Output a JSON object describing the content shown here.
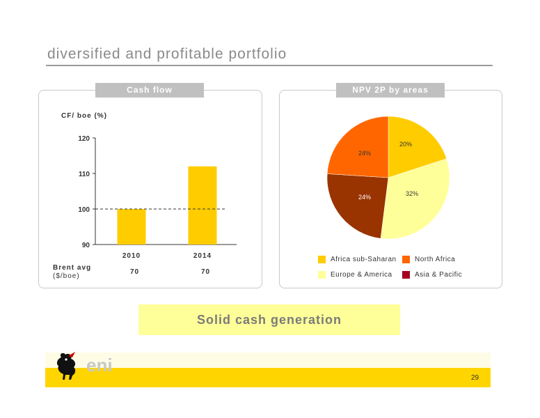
{
  "slide_title": "diversified and profitable portfolio",
  "cash_flow": {
    "header": "Cash flow",
    "unit_label": "CF/ boe (%)",
    "row_label_bold": "Brent avg",
    "row_label_unit": "($/boe)",
    "brent_values": [
      "70",
      "70"
    ]
  },
  "npv": {
    "header": "NPV 2P by areas",
    "legend": [
      "Africa sub-Saharan",
      "North Africa",
      "Europe & America",
      "Asia & Pacific"
    ]
  },
  "banner_text": "Solid cash generation",
  "logo_text": "eni",
  "page_number": "29",
  "colors": {
    "bar": "#ffcc00",
    "africa_sub_saharan": "#ffcc00",
    "north_africa": "#ff6600",
    "europe_america": "#ffff99",
    "asia_pacific": "#a50021",
    "europe_america_slice": "#993300",
    "footer_band": "#ffd500"
  },
  "chart_data": [
    {
      "type": "bar",
      "categories": [
        "2010",
        "2014"
      ],
      "values": [
        100,
        112
      ],
      "ylim": [
        90,
        120
      ],
      "yticks": [
        90,
        100,
        110,
        120
      ],
      "reference_line": 100,
      "grid": false,
      "xlabel": "",
      "ylabel": "CF/ boe (%)"
    },
    {
      "type": "pie",
      "labels": [
        "20%",
        "32%",
        "24%",
        "24%"
      ],
      "values": [
        20,
        32,
        24,
        24
      ],
      "legend_position": "bottom"
    }
  ]
}
